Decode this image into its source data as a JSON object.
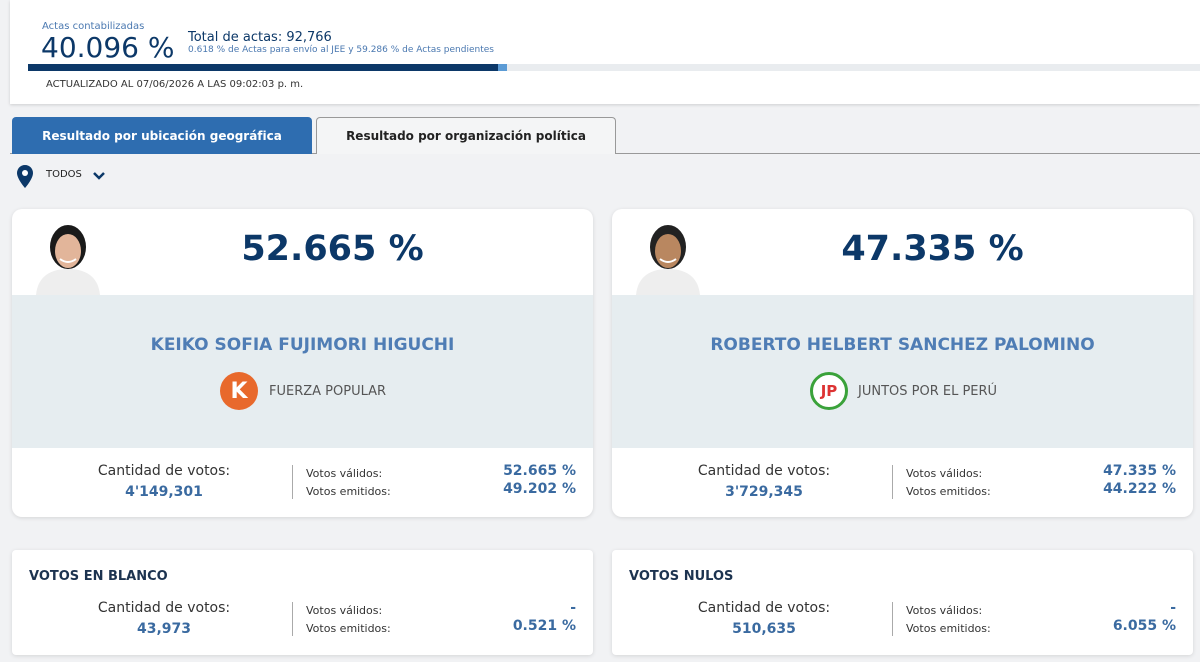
{
  "header": {
    "counted_label": "Actas contabilizadas",
    "percent": "40.096 %",
    "total": "Total de actas: 92,766",
    "note": "0.618 % de Actas para envío al JEE y 59.286 % de Actas pendientes",
    "updated": "ACTUALIZADO AL 07/06/2026 A LAS 09:02:03 p. m."
  },
  "tabs": [
    "Resultado por ubicación geográfica",
    "Resultado por organización política"
  ],
  "filter": "TODOS",
  "candidates": [
    {
      "percent": "52.665 %",
      "name": "KEIKO SOFIA FUJIMORI HIGUCHI",
      "logo": "K",
      "party": "FUERZA POPULAR",
      "votes_label": "Cantidad de votos:",
      "votes": "4'149,301",
      "valid_label": "Votos válidos:",
      "valid": "52.665 %",
      "emitted_label": "Votos emitidos:",
      "emitted": "49.202 %"
    },
    {
      "percent": "47.335 %",
      "name": "ROBERTO HELBERT SANCHEZ PALOMINO",
      "logo": "JP",
      "party": "JUNTOS POR EL PERÚ",
      "votes_label": "Cantidad de votos:",
      "votes": "3'729,345",
      "valid_label": "Votos válidos:",
      "valid": "47.335 %",
      "emitted_label": "Votos emitidos:",
      "emitted": "44.222 %"
    }
  ],
  "others": [
    {
      "title": "VOTOS EN BLANCO",
      "votes_label": "Cantidad de votos:",
      "votes": "43,973",
      "valid_label": "Votos válidos:",
      "valid": "-",
      "emitted_label": "Votos emitidos:",
      "emitted": "0.521 %"
    },
    {
      "title": "VOTOS NULOS",
      "votes_label": "Cantidad de votos:",
      "votes": "510,635",
      "valid_label": "Votos válidos:",
      "valid": "-",
      "emitted_label": "Votos emitidos:",
      "emitted": "6.055 %"
    }
  ]
}
